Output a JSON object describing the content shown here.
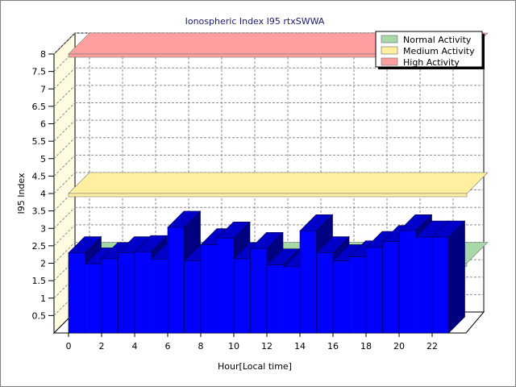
{
  "chart_data": {
    "type": "bar",
    "title": "Ionospheric Index I95 rtxSWWA",
    "xlabel": "Hour[Local time]",
    "ylabel": "I95 Index",
    "ylim": [
      0,
      8
    ],
    "yticks": [
      "0.5",
      "1",
      "1.5",
      "2",
      "2.5",
      "3",
      "3.5",
      "4",
      "4.5",
      "5",
      "5.5",
      "6",
      "6.5",
      "7",
      "7.5",
      "8"
    ],
    "xticks": [
      "0",
      "2",
      "4",
      "6",
      "8",
      "10",
      "12",
      "14",
      "16",
      "18",
      "20",
      "22"
    ],
    "hours": [
      0,
      1,
      2,
      3,
      4,
      5,
      6,
      7,
      8,
      9,
      10,
      11,
      12,
      13,
      14,
      15,
      16,
      17,
      18,
      19,
      20,
      21,
      22
    ],
    "values": [
      2.3,
      1.98,
      2.13,
      2.3,
      2.33,
      2.12,
      3.03,
      2.07,
      2.53,
      2.72,
      2.13,
      2.42,
      1.95,
      1.9,
      2.93,
      2.3,
      2.07,
      2.18,
      2.45,
      2.62,
      2.93,
      2.75,
      2.75
    ],
    "bands": [
      {
        "name": "Normal Activity",
        "value": 2,
        "color": "#a8d8a8"
      },
      {
        "name": "Medium Activity",
        "value": 4,
        "color": "#fff0a0"
      },
      {
        "name": "High Activity",
        "value": 8,
        "color": "#ff9f9f"
      }
    ],
    "bar_color": "#0000ff",
    "legend_position": "top-right",
    "grid": true
  }
}
